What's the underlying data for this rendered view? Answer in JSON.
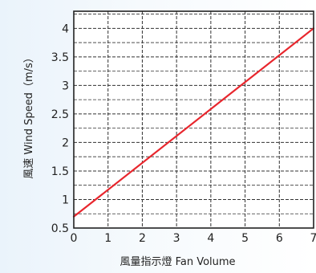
{
  "colors": {
    "line": "#e8262d",
    "plot_background": "#ffffff",
    "axis": "#222222",
    "grid": "#333333"
  },
  "chart_data": {
    "type": "line",
    "title": "",
    "xlabel": "風量指示燈 Fan Volume",
    "ylabel": "風速 Wind Speed（m/s）",
    "xlim": [
      0,
      7
    ],
    "ylim": [
      0.5,
      4.3
    ],
    "x_ticks": [
      0,
      1,
      2,
      3,
      4,
      5,
      6,
      7
    ],
    "y_ticks": [
      0.5,
      1,
      1.5,
      2,
      2.5,
      3,
      3.5,
      4
    ],
    "x_tick_labels": [
      "0",
      "1",
      "2",
      "3",
      "4",
      "5",
      "6",
      "7"
    ],
    "y_tick_labels": [
      "0.5",
      "1",
      "1.5",
      "2",
      "2.5",
      "3",
      "3.5",
      "4"
    ],
    "grid": "dashed",
    "series": [
      {
        "x": [
          0,
          7
        ],
        "y": [
          0.7,
          4.0
        ],
        "color": "#e8262d"
      }
    ]
  }
}
